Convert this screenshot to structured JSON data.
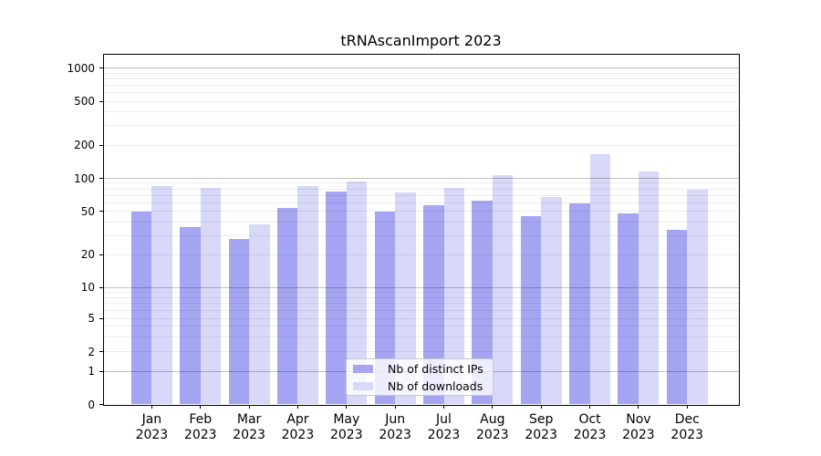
{
  "title": "tRNAscanImport 2023",
  "chart_data": {
    "type": "bar",
    "title": "tRNAscanImport 2023",
    "categories": [
      "Jan 2023",
      "Feb 2023",
      "Mar 2023",
      "Apr 2023",
      "May 2023",
      "Jun 2023",
      "Jul 2023",
      "Aug 2023",
      "Sep 2023",
      "Oct 2023",
      "Nov 2023",
      "Dec 2023"
    ],
    "x_tick_months": [
      "Jan",
      "Feb",
      "Mar",
      "Apr",
      "May",
      "Jun",
      "Jul",
      "Aug",
      "Sep",
      "Oct",
      "Nov",
      "Dec"
    ],
    "x_tick_year": "2023",
    "series": [
      {
        "name": "Nb of distinct IPs",
        "color": "#a5a5f2",
        "values": [
          50,
          36,
          28,
          54,
          76,
          50,
          57,
          62,
          45,
          59,
          48,
          34
        ]
      },
      {
        "name": "Nb of downloads",
        "color": "#d8d8f9",
        "values": [
          85,
          81,
          38,
          85,
          93,
          74,
          81,
          106,
          68,
          165,
          116,
          78
        ]
      }
    ],
    "xlabel": "",
    "ylabel": "",
    "yscale": "log-like with 0 baseline",
    "ylim": [
      0,
      1300
    ],
    "yticks": [
      0,
      1,
      2,
      5,
      10,
      20,
      50,
      100,
      200,
      500,
      1000
    ],
    "ytick_offsets": [
      383.5,
      347.3,
      325.7,
      289.0,
      255.3,
      219.4,
      171.6,
      135.5,
      99.2,
      51.2,
      14.8
    ],
    "minor_grid_values": [
      2,
      3,
      4,
      5,
      6,
      7,
      8,
      9,
      20,
      30,
      40,
      50,
      60,
      70,
      80,
      90,
      200,
      300,
      400,
      500,
      600,
      700,
      800,
      900
    ],
    "major_grid_values": [
      1,
      10,
      100,
      1000
    ],
    "grid": true,
    "legend_position": "lower center",
    "colors": {
      "grid_minor": "#e8e8e8",
      "grid_major": "#c3c3c3",
      "axis": "#000000",
      "background": "#ffffff"
    }
  }
}
